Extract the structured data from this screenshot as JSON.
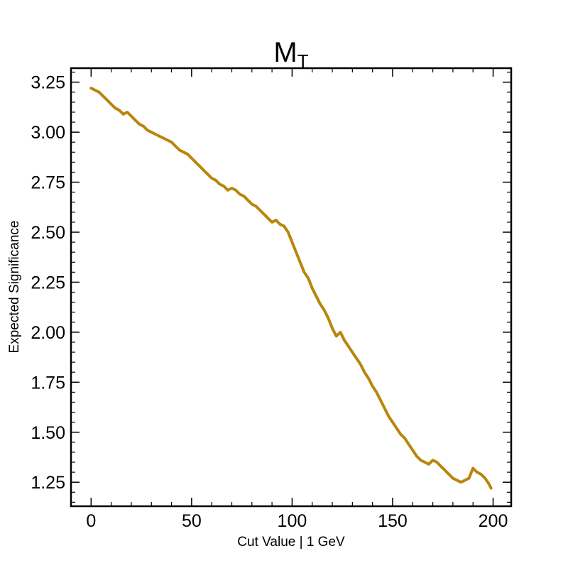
{
  "chart_data": {
    "type": "line",
    "title": "M",
    "title_subscript": "T",
    "xlabel": "Cut Value | 1 GeV",
    "ylabel": "Expected Significance",
    "xlim": [
      -10,
      209
    ],
    "ylim": [
      1.13,
      3.32
    ],
    "xticks": [
      0,
      50,
      100,
      150,
      200
    ],
    "xtick_labels": [
      "0",
      "50",
      "100",
      "150",
      "200"
    ],
    "yticks": [
      1.25,
      1.5,
      1.75,
      2.0,
      2.25,
      2.5,
      2.75,
      3.0,
      3.25
    ],
    "ytick_labels": [
      "1.25",
      "1.50",
      "1.75",
      "2.00",
      "2.25",
      "2.50",
      "2.75",
      "3.00",
      "3.25"
    ],
    "grid": false,
    "series": [
      {
        "color": "#b8860b",
        "x": [
          0,
          2,
          4,
          6,
          8,
          10,
          12,
          14,
          16,
          18,
          20,
          22,
          24,
          26,
          28,
          30,
          32,
          34,
          36,
          38,
          40,
          42,
          44,
          46,
          48,
          50,
          52,
          54,
          56,
          58,
          60,
          62,
          64,
          66,
          68,
          70,
          72,
          74,
          76,
          78,
          80,
          82,
          84,
          86,
          88,
          90,
          92,
          94,
          96,
          98,
          100,
          102,
          104,
          106,
          108,
          110,
          112,
          114,
          116,
          118,
          120,
          122,
          124,
          126,
          128,
          130,
          132,
          134,
          136,
          138,
          140,
          142,
          144,
          146,
          148,
          150,
          152,
          154,
          156,
          158,
          160,
          162,
          164,
          166,
          168,
          170,
          172,
          174,
          176,
          178,
          180,
          182,
          184,
          186,
          188,
          190,
          192,
          194,
          196,
          198,
          199
        ],
        "y": [
          3.22,
          3.21,
          3.2,
          3.18,
          3.16,
          3.14,
          3.12,
          3.11,
          3.09,
          3.1,
          3.08,
          3.06,
          3.04,
          3.03,
          3.01,
          3.0,
          2.99,
          2.98,
          2.97,
          2.96,
          2.95,
          2.93,
          2.91,
          2.9,
          2.89,
          2.87,
          2.85,
          2.83,
          2.81,
          2.79,
          2.77,
          2.76,
          2.74,
          2.73,
          2.71,
          2.72,
          2.71,
          2.69,
          2.68,
          2.66,
          2.64,
          2.63,
          2.61,
          2.59,
          2.57,
          2.55,
          2.56,
          2.54,
          2.53,
          2.5,
          2.45,
          2.4,
          2.35,
          2.3,
          2.27,
          2.22,
          2.18,
          2.14,
          2.11,
          2.07,
          2.02,
          1.98,
          2.0,
          1.96,
          1.93,
          1.9,
          1.87,
          1.84,
          1.8,
          1.77,
          1.73,
          1.7,
          1.66,
          1.62,
          1.58,
          1.55,
          1.52,
          1.49,
          1.47,
          1.44,
          1.41,
          1.38,
          1.36,
          1.35,
          1.34,
          1.36,
          1.35,
          1.33,
          1.31,
          1.29,
          1.27,
          1.26,
          1.25,
          1.26,
          1.27,
          1.32,
          1.3,
          1.29,
          1.27,
          1.24,
          1.22
        ]
      }
    ]
  }
}
